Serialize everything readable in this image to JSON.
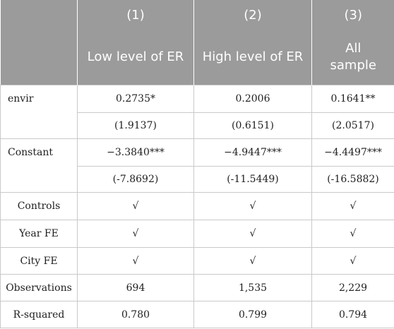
{
  "header": {
    "numbers": [
      "(1)",
      "(2)",
      "(3)"
    ],
    "titles": [
      "Low level of ER",
      "High level of ER",
      "All sample"
    ]
  },
  "rows": {
    "envir": {
      "label": "envir",
      "coef": [
        "0.2735*",
        "0.2006",
        "0.1641**"
      ],
      "t": [
        "(1.9137)",
        "(0.6151)",
        "(2.0517)"
      ]
    },
    "constant": {
      "label": "Constant",
      "coef": [
        "−3.3840***",
        "−4.9447***",
        "−4.4497***"
      ],
      "t": [
        "(-7.8692)",
        "(-11.5449)",
        "(-16.5882)"
      ]
    },
    "controls": {
      "label": "Controls",
      "values": [
        "√",
        "√",
        "√"
      ]
    },
    "year_fe": {
      "label": "Year FE",
      "values": [
        "√",
        "√",
        "√"
      ]
    },
    "city_fe": {
      "label": "City FE",
      "values": [
        "√",
        "√",
        "√"
      ]
    },
    "observations": {
      "label": "Observations",
      "values": [
        "694",
        "1,535",
        "2,229"
      ]
    },
    "r_squared": {
      "label": "R-squared",
      "values": [
        "0.780",
        "0.799",
        "0.794"
      ]
    }
  }
}
